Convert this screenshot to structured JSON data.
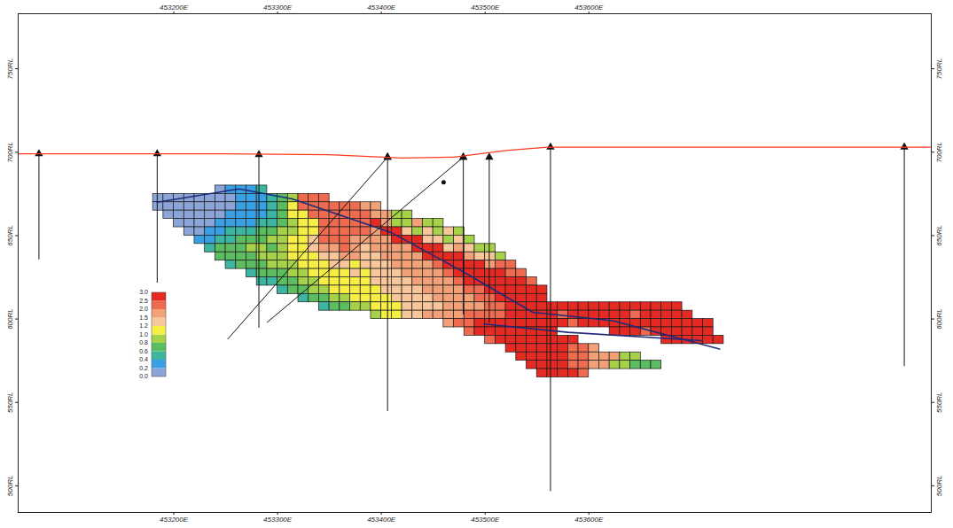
{
  "chart_data": {
    "type": "heatmap",
    "xlim": [
      453050,
      453930
    ],
    "xticks": [
      {
        "value": 453200,
        "label": "453200E"
      },
      {
        "value": 453300,
        "label": "453300E"
      },
      {
        "value": 453400,
        "label": "453400E"
      },
      {
        "value": 453500,
        "label": "453500E"
      },
      {
        "value": 453600,
        "label": "453600E"
      }
    ],
    "ylim": [
      484,
      783
    ],
    "yticks": [
      {
        "value": 500,
        "label": "500RL"
      },
      {
        "value": 550,
        "label": "550RL"
      },
      {
        "value": 600,
        "label": "600RL"
      },
      {
        "value": 650,
        "label": "650RL"
      },
      {
        "value": 700,
        "label": "700RL"
      },
      {
        "value": 750,
        "label": "750RL"
      }
    ],
    "cell_width": 10,
    "cell_height": 5,
    "cells": [
      {
        "y": 675,
        "x0": 453240,
        "values": [
          0.1,
          0.3,
          0.3,
          0.3,
          0.5
        ]
      },
      {
        "y": 670,
        "x0": 453180,
        "values": [
          0.1,
          0.1,
          0.1,
          0.1,
          0.1,
          0.1,
          0.1,
          0.1,
          0.3,
          0.3,
          0.3,
          0.5,
          0.7,
          0.9,
          2.2,
          2.2,
          2.2
        ]
      },
      {
        "y": 665,
        "x0": 453180,
        "values": [
          0.1,
          0.1,
          0.1,
          0.1,
          0.1,
          0.1,
          0.1,
          0.1,
          0.3,
          0.3,
          0.3,
          0.5,
          0.7,
          1.1,
          2.2,
          2.2,
          2.2,
          2.2,
          2.2,
          2.2,
          1.7,
          1.7
        ]
      },
      {
        "y": 660,
        "x0": 453190,
        "values": [
          0.1,
          0.1,
          0.1,
          0.1,
          0.1,
          0.1,
          0.3,
          0.3,
          0.3,
          0.3,
          0.5,
          0.7,
          1.1,
          1.1,
          2.2,
          2.2,
          2.2,
          2.2,
          2.2,
          2.2,
          1.7,
          1.7,
          0.9,
          0.9
        ]
      },
      {
        "y": 655,
        "x0": 453200,
        "values": [
          0.1,
          0.1,
          0.1,
          0.1,
          0.3,
          0.3,
          0.3,
          0.3,
          0.5,
          0.5,
          0.7,
          0.9,
          1.1,
          1.1,
          2.2,
          2.2,
          2.2,
          2.2,
          2.2,
          2.7,
          1.7,
          0.9,
          0.9,
          1.7,
          0.9,
          0.9
        ]
      },
      {
        "y": 650,
        "x0": 453210,
        "values": [
          0.1,
          0.1,
          0.3,
          0.3,
          0.5,
          0.5,
          0.5,
          0.7,
          0.7,
          0.9,
          0.9,
          1.1,
          1.1,
          2.2,
          2.2,
          2.2,
          2.2,
          2.2,
          1.7,
          2.7,
          2.7,
          1.3,
          0.9,
          1.3,
          0.9,
          1.3,
          0.9
        ]
      },
      {
        "y": 645,
        "x0": 453220,
        "values": [
          0.3,
          0.3,
          0.5,
          0.5,
          0.7,
          0.7,
          0.7,
          0.9,
          0.9,
          1.1,
          1.1,
          1.3,
          2.2,
          2.2,
          2.2,
          1.7,
          1.7,
          1.7,
          1.7,
          2.7,
          2.7,
          2.7,
          1.3,
          1.3,
          0.9,
          1.3,
          0.9
        ]
      },
      {
        "y": 640,
        "x0": 453230,
        "values": [
          0.5,
          0.7,
          0.7,
          0.7,
          0.9,
          0.9,
          0.7,
          0.9,
          1.1,
          1.1,
          1.3,
          1.7,
          1.7,
          2.2,
          1.7,
          1.3,
          1.7,
          1.7,
          1.7,
          1.7,
          2.7,
          2.7,
          2.7,
          1.3,
          1.7,
          1.3,
          0.9,
          0.9
        ]
      },
      {
        "y": 635,
        "x0": 453240,
        "values": [
          0.7,
          0.7,
          0.7,
          0.7,
          0.9,
          0.9,
          0.9,
          1.1,
          1.1,
          1.1,
          1.3,
          1.3,
          1.7,
          1.7,
          1.3,
          1.3,
          1.7,
          1.7,
          1.7,
          1.7,
          2.7,
          2.7,
          2.7,
          2.7,
          1.7,
          1.3,
          1.3,
          0.9
        ]
      },
      {
        "y": 630,
        "x0": 453250,
        "values": [
          0.5,
          0.7,
          0.7,
          0.7,
          0.9,
          0.9,
          0.9,
          1.1,
          1.1,
          1.1,
          1.3,
          1.3,
          1.1,
          1.3,
          1.3,
          1.3,
          1.7,
          1.7,
          1.7,
          1.7,
          2.2,
          2.7,
          2.7,
          2.7,
          2.7,
          1.7,
          2.2,
          2.2
        ]
      },
      {
        "y": 625,
        "x0": 453270,
        "values": [
          0.5,
          0.7,
          0.7,
          0.7,
          0.9,
          0.9,
          1.1,
          1.1,
          1.1,
          1.1,
          1.3,
          1.1,
          1.3,
          1.3,
          1.3,
          1.7,
          1.7,
          1.7,
          1.7,
          2.2,
          2.7,
          2.7,
          2.7,
          2.7,
          2.7,
          2.2,
          2.2
        ]
      },
      {
        "y": 620,
        "x0": 453280,
        "values": [
          0.5,
          0.5,
          0.7,
          0.7,
          0.9,
          0.9,
          1.1,
          1.1,
          1.1,
          1.1,
          1.1,
          1.3,
          1.3,
          1.3,
          1.3,
          1.7,
          1.7,
          1.7,
          1.7,
          2.2,
          2.7,
          2.7,
          2.7,
          2.7,
          2.7,
          2.7,
          2.2
        ]
      },
      {
        "y": 615,
        "x0": 453300,
        "values": [
          0.5,
          0.7,
          0.7,
          0.9,
          0.9,
          1.1,
          1.1,
          1.1,
          1.1,
          1.1,
          1.3,
          1.3,
          1.3,
          1.3,
          1.7,
          1.7,
          1.7,
          1.7,
          2.2,
          2.2,
          2.7,
          2.7,
          2.7,
          2.7,
          2.7,
          2.7
        ]
      },
      {
        "y": 610,
        "x0": 453320,
        "values": [
          0.5,
          0.7,
          0.7,
          0.9,
          0.9,
          1.1,
          1.1,
          1.1,
          1.1,
          1.3,
          1.3,
          1.3,
          1.3,
          1.7,
          1.7,
          1.7,
          1.7,
          2.2,
          2.2,
          2.7,
          2.7,
          2.7,
          2.7,
          2.7
        ]
      },
      {
        "y": 605,
        "x0": 453340,
        "values": [
          0.5,
          0.7,
          0.7,
          0.9,
          0.9,
          1.1,
          1.1,
          1.1,
          1.3,
          1.3,
          1.3,
          1.3,
          1.7,
          1.7,
          1.7,
          1.7,
          2.2,
          2.2,
          2.7,
          2.7,
          2.7,
          2.7,
          2.7,
          2.7,
          2.7,
          2.7,
          2.7,
          2.7,
          2.7,
          2.7,
          2.7,
          2.7,
          2.7,
          2.7,
          2.7
        ]
      },
      {
        "y": 600,
        "x0": 453390,
        "values": [
          0.9,
          1.1,
          1.1,
          1.3,
          1.3,
          1.7,
          1.7,
          1.7,
          1.7,
          2.2,
          2.2,
          2.2,
          2.2,
          2.7,
          2.7,
          2.7,
          2.7,
          2.7,
          2.2,
          2.7,
          2.7,
          2.7,
          2.7,
          2.7,
          2.7,
          2.2,
          2.7,
          2.7,
          2.7,
          2.7,
          2.7
        ]
      },
      {
        "y": 595,
        "x0": 453460,
        "values": [
          1.7,
          2.2,
          2.2,
          2.7,
          2.7,
          2.7,
          2.7,
          2.7,
          2.7,
          2.7,
          2.7,
          2.7,
          2.2,
          2.7,
          2.7,
          2.7,
          2.7,
          2.7,
          2.7,
          2.7,
          2.7,
          2.7,
          2.7,
          2.7,
          2.7,
          2.7
        ]
      },
      {
        "y": 590,
        "x0": 453480,
        "values": [
          2.2,
          2.7,
          2.7,
          2.7,
          2.7,
          2.7,
          2.7,
          2.7,
          2.7
        ]
      },
      {
        "y": 590,
        "x0": 453620,
        "values": [
          2.7,
          2.7,
          2.7,
          2.2,
          2.7,
          2.7,
          2.7,
          2.7,
          2.7,
          2.7
        ]
      },
      {
        "y": 585,
        "x0": 453500,
        "values": [
          2.2,
          2.7,
          2.7,
          2.7,
          2.7,
          2.7,
          2.7,
          2.7,
          2.7
        ]
      },
      {
        "y": 585,
        "x0": 453670,
        "values": [
          2.7,
          2.7,
          2.7,
          2.7,
          2.7,
          2.7
        ]
      },
      {
        "y": 580,
        "x0": 453520,
        "values": [
          2.7,
          2.7,
          2.7,
          2.7,
          2.7,
          2.7,
          2.2,
          2.2,
          1.7
        ]
      },
      {
        "y": 575,
        "x0": 453530,
        "values": [
          2.7,
          2.7,
          2.7,
          2.7,
          2.7,
          2.2,
          2.2,
          1.7,
          1.7,
          1.7,
          0.9,
          0.9
        ]
      },
      {
        "y": 570,
        "x0": 453540,
        "values": [
          2.7,
          2.7,
          2.7,
          2.7,
          2.2,
          2.2,
          1.7,
          1.7,
          0.9,
          0.9,
          0.7,
          0.7,
          0.7
        ]
      },
      {
        "y": 565,
        "x0": 453550,
        "values": [
          2.7,
          2.7,
          2.7,
          2.7,
          2.2
        ]
      }
    ],
    "color_bar": {
      "ticks": [
        {
          "value": 0,
          "label": "0.0"
        },
        0.2,
        0.4,
        0.6,
        0.8,
        {
          "value": 1,
          "label": "1.0"
        },
        1.2,
        1.5,
        {
          "value": 2,
          "label": "2.0"
        },
        2.5,
        {
          "value": 3,
          "label": "3.0"
        }
      ],
      "colors": [
        "#8ca5d8",
        "#3aa0e4",
        "#3cb6a0",
        "#5cbc60",
        "#a6d24a",
        "#f7ee45",
        "#f7c69a",
        "#f2a078",
        "#ef6b4f",
        "#e42a22"
      ]
    },
    "surface": {
      "color": "#ff3b1f",
      "x": [
        453050,
        453150,
        453250,
        453350,
        453420,
        453470,
        453520,
        453560,
        453700,
        453930
      ],
      "y": [
        699,
        699,
        699,
        698.5,
        696.5,
        697,
        701,
        703,
        703,
        703
      ]
    },
    "contacts": [
      {
        "color": "#1f2a7a",
        "x": [
          453314,
          453409,
          453477,
          453546,
          453623,
          453726
        ],
        "y": [
          672,
          652,
          629,
          604,
          599,
          582
        ]
      },
      {
        "color": "#1f2a7a",
        "x": [
          453499,
          453580,
          453709
        ],
        "y": [
          597,
          592,
          587
        ]
      },
      {
        "color": "#1f2a7a",
        "x": [
          453184,
          453263,
          453314
        ],
        "y": [
          670,
          678,
          672
        ]
      }
    ],
    "drillholes": {
      "color": "#111111",
      "marker": "triangle",
      "holes": [
        {
          "x": [
            453070,
            453070
          ],
          "y": [
            699,
            636
          ]
        },
        {
          "x": [
            453184,
            453184
          ],
          "y": [
            699,
            622
          ]
        },
        {
          "x": [
            453282,
            453282
          ],
          "y": [
            698.5,
            595
          ]
        },
        {
          "x": [
            453406,
            453406
          ],
          "y": [
            697,
            545
          ]
        },
        {
          "x": [
            453406,
            453252
          ],
          "y": [
            697,
            588
          ]
        },
        {
          "x": [
            453479,
            453290
          ],
          "y": [
            697,
            598
          ]
        },
        {
          "x": [
            453479,
            453479
          ],
          "y": [
            697,
            603
          ]
        },
        {
          "x": [
            453504,
            453504
          ],
          "y": [
            697,
            598
          ]
        },
        {
          "x": [
            453563,
            453563
          ],
          "y": [
            703,
            497
          ]
        },
        {
          "x": [
            453904,
            453904
          ],
          "y": [
            703,
            572
          ]
        }
      ]
    },
    "points": {
      "color": "#111111",
      "x": [
        453460
      ],
      "y": [
        682
      ]
    }
  }
}
